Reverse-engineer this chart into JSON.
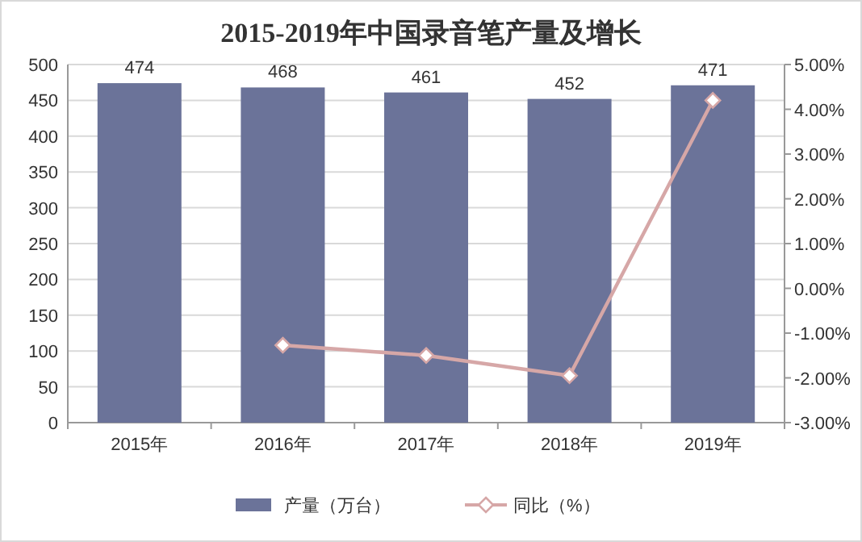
{
  "chart_data": {
    "type": "bar",
    "title": "2015-2019年中国录音笔产量及增长",
    "categories": [
      "2015年",
      "2016年",
      "2017年",
      "2018年",
      "2019年"
    ],
    "series": [
      {
        "name": "产量（万台）",
        "color": "#6b7399",
        "values": [
          474,
          468,
          461,
          452,
          471
        ],
        "value_labels": [
          "474",
          "468",
          "461",
          "452",
          "471"
        ]
      },
      {
        "name": "同比（%）",
        "type": "line",
        "axis": "y2",
        "color": "#d6a7a7",
        "marker": "diamond",
        "line_style": "solid",
        "values": [
          null,
          -1.27,
          -1.5,
          -1.95,
          4.2
        ]
      }
    ],
    "ylim": [
      0,
      500
    ],
    "yticks": [
      0,
      50,
      100,
      150,
      200,
      250,
      300,
      350,
      400,
      450,
      500
    ],
    "y2lim": [
      -3,
      5
    ],
    "y2ticks": [
      {
        "value": -3,
        "label": "-3.00%"
      },
      {
        "value": -2,
        "label": "-2.00%"
      },
      {
        "value": -1,
        "label": "-1.00%"
      },
      {
        "value": 0,
        "label": "0.00%"
      },
      {
        "value": 1,
        "label": "1.00%"
      },
      {
        "value": 2,
        "label": "2.00%"
      },
      {
        "value": 3,
        "label": "3.00%"
      },
      {
        "value": 4,
        "label": "4.00%"
      },
      {
        "value": 5,
        "label": "5.00%"
      }
    ],
    "grid": "y",
    "legend": "bottom"
  }
}
